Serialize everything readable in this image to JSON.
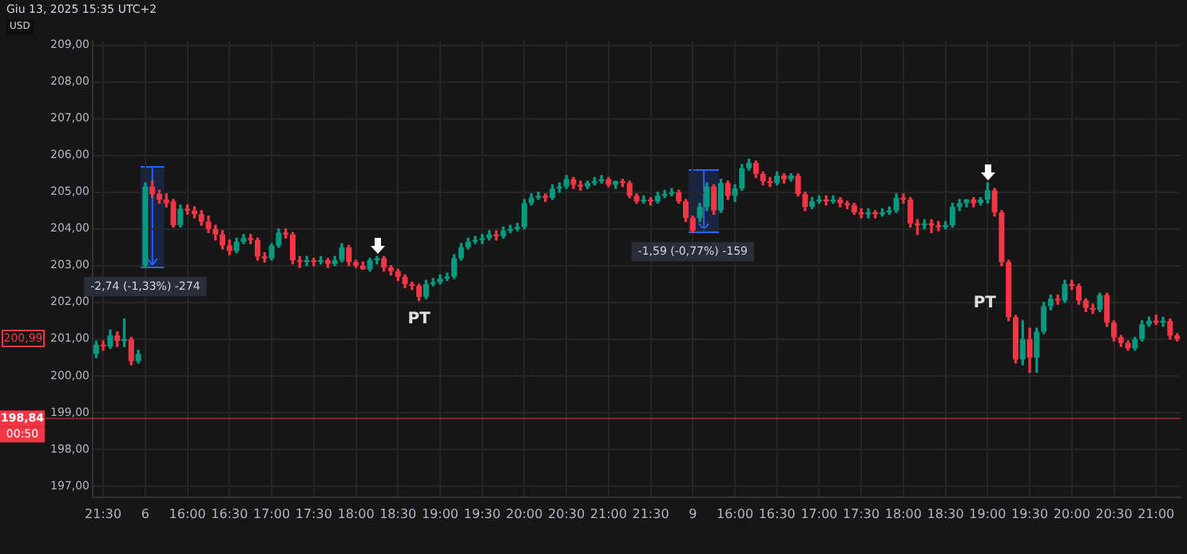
{
  "chart_data": {
    "type": "candlestick",
    "title": "Giu 13, 2025 15:35 UTC+2",
    "ylabel": "USD",
    "categories": [
      null,
      "21:30",
      null,
      null,
      null,
      null,
      null,
      "6",
      null,
      null,
      null,
      null,
      null,
      "16:00",
      null,
      null,
      null,
      null,
      null,
      "16:30",
      null,
      null,
      null,
      null,
      null,
      "17:00",
      null,
      null,
      null,
      null,
      null,
      "17:30",
      null,
      null,
      null,
      null,
      null,
      "18:00",
      null,
      null,
      null,
      null,
      null,
      "18:30",
      null,
      null,
      null,
      null,
      null,
      "19:00",
      null,
      null,
      null,
      null,
      null,
      "19:30",
      null,
      null,
      null,
      null,
      null,
      "20:00",
      null,
      null,
      null,
      null,
      null,
      "20:30",
      null,
      null,
      null,
      null,
      null,
      "21:00",
      null,
      null,
      null,
      null,
      null,
      "21:30",
      null,
      null,
      null,
      null,
      null,
      "9",
      null,
      null,
      null,
      null,
      null,
      "16:00",
      null,
      null,
      null,
      null,
      null,
      "16:30",
      null,
      null,
      null,
      null,
      null,
      "17:00",
      null,
      null,
      null,
      null,
      null,
      "17:30",
      null,
      null,
      null,
      null,
      null,
      "18:00",
      null,
      null,
      null,
      null,
      null,
      "18:30",
      null,
      null,
      null,
      null,
      null,
      "19:00",
      null,
      null,
      null,
      null,
      null,
      "19:30",
      null,
      null,
      null,
      null,
      null,
      "20:00",
      null,
      null,
      null,
      null,
      null,
      "20:30",
      null,
      null,
      null,
      null,
      null,
      "21:00",
      null,
      null,
      null
    ],
    "ohlc": [
      [
        200.6,
        200.95,
        200.5,
        200.85
      ],
      [
        200.85,
        200.95,
        200.7,
        200.8
      ],
      [
        200.8,
        201.25,
        200.75,
        201.1
      ],
      [
        201.1,
        201.2,
        200.8,
        200.95
      ],
      [
        200.95,
        201.55,
        200.8,
        201.0
      ],
      [
        201.0,
        201.05,
        200.3,
        200.4
      ],
      [
        200.4,
        200.7,
        200.35,
        200.6
      ],
      [
        203.0,
        205.25,
        202.95,
        205.15
      ],
      [
        205.15,
        205.3,
        204.85,
        204.95
      ],
      [
        204.95,
        205.05,
        204.7,
        204.8
      ],
      [
        204.8,
        204.95,
        204.6,
        204.7
      ],
      [
        204.75,
        204.8,
        204.05,
        204.1
      ],
      [
        204.1,
        204.65,
        204.05,
        204.55
      ],
      [
        204.55,
        204.65,
        204.4,
        204.5
      ],
      [
        204.5,
        204.6,
        204.3,
        204.4
      ],
      [
        204.4,
        204.5,
        204.1,
        204.2
      ],
      [
        204.2,
        204.35,
        203.9,
        204.0
      ],
      [
        204.0,
        204.1,
        203.7,
        203.85
      ],
      [
        203.85,
        203.95,
        203.45,
        203.55
      ],
      [
        203.55,
        203.7,
        203.3,
        203.4
      ],
      [
        203.4,
        203.75,
        203.35,
        203.65
      ],
      [
        203.65,
        203.85,
        203.6,
        203.75
      ],
      [
        203.75,
        203.85,
        203.6,
        203.7
      ],
      [
        203.7,
        203.75,
        203.15,
        203.25
      ],
      [
        203.25,
        203.35,
        203.1,
        203.2
      ],
      [
        203.2,
        203.6,
        203.15,
        203.55
      ],
      [
        203.55,
        204.0,
        203.5,
        203.9
      ],
      [
        203.9,
        204.0,
        203.75,
        203.85
      ],
      [
        203.85,
        203.9,
        203.05,
        203.15
      ],
      [
        203.15,
        203.25,
        202.95,
        203.1
      ],
      [
        203.1,
        203.25,
        203.0,
        203.15
      ],
      [
        203.15,
        203.2,
        203.0,
        203.1
      ],
      [
        203.1,
        203.25,
        203.05,
        203.15
      ],
      [
        203.15,
        203.2,
        202.95,
        203.05
      ],
      [
        203.05,
        203.25,
        203.0,
        203.15
      ],
      [
        203.15,
        203.6,
        203.1,
        203.5
      ],
      [
        203.5,
        203.55,
        203.0,
        203.1
      ],
      [
        203.1,
        203.15,
        202.95,
        203.0
      ],
      [
        203.0,
        203.1,
        202.9,
        202.9
      ],
      [
        202.9,
        203.2,
        202.85,
        203.15
      ],
      [
        203.15,
        203.25,
        203.05,
        203.2
      ],
      [
        203.2,
        203.25,
        202.85,
        202.95
      ],
      [
        202.95,
        203.0,
        202.75,
        202.85
      ],
      [
        202.85,
        202.9,
        202.6,
        202.7
      ],
      [
        202.7,
        202.75,
        202.4,
        202.5
      ],
      [
        202.5,
        202.55,
        202.35,
        202.45
      ],
      [
        202.45,
        202.5,
        202.05,
        202.15
      ],
      [
        202.15,
        202.6,
        202.1,
        202.5
      ],
      [
        202.5,
        202.65,
        202.45,
        202.55
      ],
      [
        202.55,
        202.75,
        202.5,
        202.65
      ],
      [
        202.65,
        202.8,
        202.6,
        202.7
      ],
      [
        202.7,
        203.3,
        202.65,
        203.2
      ],
      [
        203.2,
        203.6,
        203.15,
        203.5
      ],
      [
        203.5,
        203.75,
        203.45,
        203.65
      ],
      [
        203.65,
        203.8,
        203.6,
        203.7
      ],
      [
        203.7,
        203.85,
        203.6,
        203.75
      ],
      [
        203.75,
        203.95,
        203.7,
        203.85
      ],
      [
        203.85,
        203.95,
        203.7,
        203.8
      ],
      [
        203.8,
        204.05,
        203.75,
        203.95
      ],
      [
        203.95,
        204.1,
        203.9,
        204.0
      ],
      [
        204.0,
        204.15,
        203.95,
        204.05
      ],
      [
        204.05,
        204.8,
        204.0,
        204.7
      ],
      [
        204.7,
        204.95,
        204.65,
        204.85
      ],
      [
        204.85,
        205.0,
        204.8,
        204.9
      ],
      [
        204.9,
        204.95,
        204.75,
        204.85
      ],
      [
        204.85,
        205.2,
        204.8,
        205.1
      ],
      [
        205.1,
        205.25,
        205.0,
        205.15
      ],
      [
        205.15,
        205.45,
        205.1,
        205.35
      ],
      [
        205.35,
        205.4,
        205.1,
        205.2
      ],
      [
        205.2,
        205.3,
        205.05,
        205.15
      ],
      [
        205.15,
        205.3,
        205.1,
        205.25
      ],
      [
        205.25,
        205.4,
        205.2,
        205.3
      ],
      [
        205.3,
        205.45,
        205.25,
        205.35
      ],
      [
        205.35,
        205.4,
        205.15,
        205.2
      ],
      [
        205.2,
        205.3,
        205.1,
        205.3
      ],
      [
        205.3,
        205.35,
        205.15,
        205.25
      ],
      [
        205.25,
        205.3,
        204.85,
        204.9
      ],
      [
        204.9,
        204.95,
        204.7,
        204.75
      ],
      [
        204.75,
        204.9,
        204.7,
        204.8
      ],
      [
        204.8,
        204.85,
        204.65,
        204.75
      ],
      [
        204.75,
        205.0,
        204.7,
        204.9
      ],
      [
        204.9,
        205.05,
        204.85,
        204.95
      ],
      [
        204.95,
        205.1,
        204.9,
        205.0
      ],
      [
        205.0,
        205.05,
        204.7,
        204.75
      ],
      [
        204.75,
        204.8,
        204.2,
        204.3
      ],
      [
        204.3,
        204.35,
        203.9,
        203.95
      ],
      [
        204.3,
        204.7,
        204.2,
        204.6
      ],
      [
        204.6,
        205.25,
        204.5,
        205.15
      ],
      [
        205.15,
        205.2,
        204.4,
        204.5
      ],
      [
        204.5,
        205.35,
        204.45,
        205.25
      ],
      [
        205.25,
        205.3,
        204.8,
        204.9
      ],
      [
        204.9,
        205.2,
        204.75,
        205.1
      ],
      [
        205.1,
        205.75,
        205.05,
        205.65
      ],
      [
        205.65,
        205.9,
        205.6,
        205.8
      ],
      [
        205.8,
        205.85,
        205.4,
        205.5
      ],
      [
        205.5,
        205.55,
        205.2,
        205.3
      ],
      [
        205.3,
        205.4,
        205.15,
        205.25
      ],
      [
        205.25,
        205.55,
        205.2,
        205.45
      ],
      [
        205.45,
        205.5,
        205.25,
        205.35
      ],
      [
        205.35,
        205.5,
        205.3,
        205.45
      ],
      [
        205.45,
        205.5,
        204.9,
        204.95
      ],
      [
        204.95,
        205.0,
        204.5,
        204.6
      ],
      [
        204.6,
        204.85,
        204.55,
        204.75
      ],
      [
        204.75,
        204.9,
        204.7,
        204.8
      ],
      [
        204.8,
        204.9,
        204.65,
        204.75
      ],
      [
        204.75,
        204.9,
        204.7,
        204.8
      ],
      [
        204.8,
        204.85,
        204.6,
        204.7
      ],
      [
        204.7,
        204.75,
        204.55,
        204.65
      ],
      [
        204.65,
        204.7,
        204.4,
        204.45
      ],
      [
        204.45,
        204.55,
        204.3,
        204.4
      ],
      [
        204.4,
        204.55,
        204.3,
        204.45
      ],
      [
        204.45,
        204.5,
        204.3,
        204.4
      ],
      [
        204.4,
        204.55,
        204.35,
        204.45
      ],
      [
        204.45,
        204.6,
        204.4,
        204.5
      ],
      [
        204.5,
        204.95,
        204.45,
        204.85
      ],
      [
        204.85,
        204.95,
        204.7,
        204.8
      ],
      [
        204.8,
        204.85,
        204.05,
        204.15
      ],
      [
        204.15,
        204.25,
        203.85,
        204.1
      ],
      [
        204.1,
        204.25,
        204.0,
        204.15
      ],
      [
        204.15,
        204.25,
        203.9,
        204.1
      ],
      [
        204.1,
        204.2,
        203.95,
        204.05
      ],
      [
        204.05,
        204.2,
        204.0,
        204.1
      ],
      [
        204.1,
        204.7,
        204.05,
        204.6
      ],
      [
        204.6,
        204.8,
        204.5,
        204.7
      ],
      [
        204.7,
        204.8,
        204.6,
        204.8
      ],
      [
        204.8,
        204.85,
        204.6,
        204.7
      ],
      [
        204.7,
        204.85,
        204.65,
        204.8
      ],
      [
        204.8,
        205.25,
        204.7,
        205.05
      ],
      [
        205.05,
        205.1,
        204.35,
        204.45
      ],
      [
        204.45,
        204.5,
        203.0,
        203.1
      ],
      [
        203.1,
        203.15,
        201.5,
        201.6
      ],
      [
        201.6,
        201.65,
        200.35,
        200.45
      ],
      [
        200.45,
        201.5,
        200.3,
        201.0
      ],
      [
        201.0,
        201.3,
        200.1,
        200.5
      ],
      [
        200.5,
        201.3,
        200.1,
        201.2
      ],
      [
        201.2,
        202.0,
        201.15,
        201.9
      ],
      [
        201.9,
        202.2,
        201.8,
        202.1
      ],
      [
        202.1,
        202.2,
        201.95,
        202.05
      ],
      [
        202.05,
        202.6,
        202.0,
        202.5
      ],
      [
        202.5,
        202.6,
        202.35,
        202.45
      ],
      [
        202.45,
        202.5,
        201.95,
        202.05
      ],
      [
        202.05,
        202.1,
        201.75,
        201.85
      ],
      [
        201.85,
        201.95,
        201.7,
        201.8
      ],
      [
        201.8,
        202.25,
        201.75,
        202.2
      ],
      [
        202.2,
        202.25,
        201.35,
        201.45
      ],
      [
        201.45,
        201.5,
        200.95,
        201.05
      ],
      [
        201.05,
        201.1,
        200.8,
        200.9
      ],
      [
        200.9,
        200.95,
        200.7,
        200.75
      ],
      [
        200.75,
        201.05,
        200.7,
        201.0
      ],
      [
        201.0,
        201.5,
        200.95,
        201.4
      ],
      [
        201.4,
        201.6,
        201.35,
        201.5
      ],
      [
        201.5,
        201.65,
        201.4,
        201.45
      ],
      [
        201.45,
        201.6,
        201.35,
        201.5
      ],
      [
        201.5,
        201.55,
        201.0,
        201.1
      ],
      [
        201.1,
        201.15,
        200.95,
        201.0
      ]
    ],
    "ylim": [
      196.7,
      209.1
    ],
    "yticks": [
      {
        "value": 197,
        "label": "197,00"
      },
      {
        "value": 198,
        "label": "198,00"
      },
      {
        "value": 199,
        "label": "199,00"
      },
      {
        "value": 200,
        "label": "200,00"
      },
      {
        "value": 201,
        "label": "201,00"
      },
      {
        "value": 202,
        "label": "202,00"
      },
      {
        "value": 203,
        "label": "203,00"
      },
      {
        "value": 204,
        "label": "204,00"
      },
      {
        "value": 205,
        "label": "205,00"
      },
      {
        "value": 206,
        "label": "206,00"
      },
      {
        "value": 207,
        "label": "207,00"
      },
      {
        "value": 208,
        "label": "208,00"
      },
      {
        "value": 209,
        "label": "209,00"
      }
    ],
    "ref_lines": [
      {
        "axis": "y",
        "value": 198.84,
        "label": "198,84",
        "color": "#f23645"
      }
    ],
    "annotations": [
      {
        "text": "-2,74 (-1,33%) -274",
        "x": "6",
        "y": 202.95
      },
      {
        "text": "-1,59 (-0,77%) -159",
        "x": "9",
        "y": 203.9
      },
      "PT",
      "PT",
      "200,99",
      "00:50"
    ],
    "grid": true,
    "legend": false
  }
}
